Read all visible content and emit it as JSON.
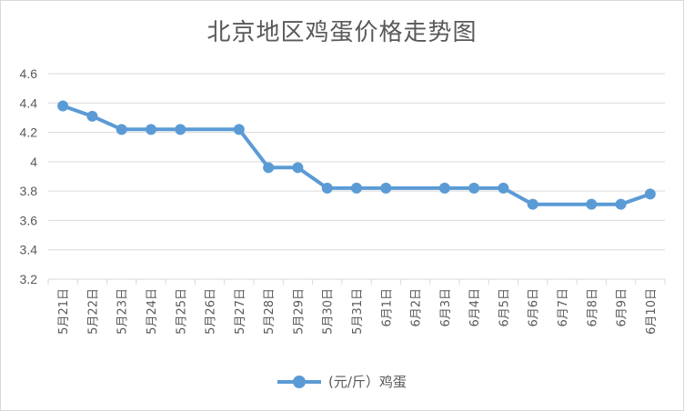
{
  "chart_data": {
    "type": "line",
    "title": "北京地区鸡蛋价格走势图",
    "categories": [
      "5月21日",
      "5月22日",
      "5月23日",
      "5月24日",
      "5月25日",
      "5月26日",
      "5月27日",
      "5月28日",
      "5月29日",
      "5月30日",
      "5月31日",
      "6月1日",
      "6月2日",
      "6月3日",
      "6月4日",
      "6月5日",
      "6月6日",
      "6月7日",
      "6月8日",
      "6月9日",
      "6月10日"
    ],
    "series": [
      {
        "name": "(元/斤）鸡蛋",
        "color": "#5b9bd5",
        "values": [
          4.38,
          4.31,
          4.22,
          4.22,
          4.22,
          null,
          4.22,
          3.96,
          3.96,
          3.82,
          3.82,
          3.82,
          null,
          3.82,
          3.82,
          3.82,
          3.71,
          null,
          3.71,
          3.71,
          3.78
        ]
      }
    ],
    "y_ticks": [
      "3.2",
      "3.4",
      "3.6",
      "3.8",
      "4",
      "4.2",
      "4.4",
      "4.6"
    ],
    "ylim": [
      3.2,
      4.6
    ],
    "grid": true,
    "legend_position": "bottom",
    "xlabel": "",
    "ylabel": ""
  }
}
